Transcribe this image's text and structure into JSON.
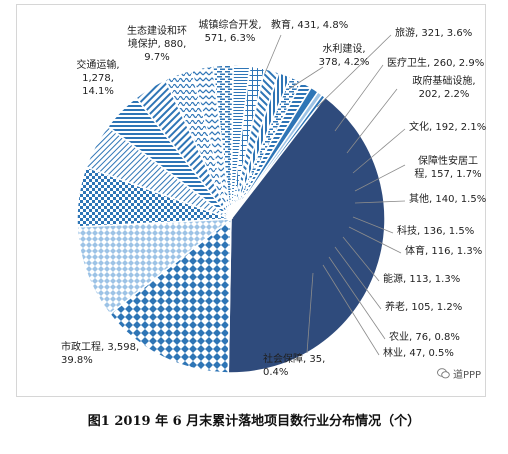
{
  "caption": "图1   2019 年 6 月末累计落地项目数行业分布情况（个）",
  "watermark": {
    "text": "道PPP",
    "icon": "wechat-icon"
  },
  "colors": {
    "dark_navy": "#2f4b7c",
    "blue": "#2e75b6",
    "light_blue": "#9dc3e6",
    "white": "#ffffff",
    "line": "#8c8c8c"
  },
  "chart_data": {
    "type": "pie",
    "title": "",
    "unit": "个",
    "slices": [
      {
        "key": "urban",
        "name": "城镇综合开发",
        "value": 571,
        "percent": 6.3,
        "label": "城镇综合开发,\n571, 6.3%"
      },
      {
        "key": "education",
        "name": "教育",
        "value": 431,
        "percent": 4.8,
        "label": "教育, 431, 4.8%"
      },
      {
        "key": "water",
        "name": "水利建设",
        "value": 378,
        "percent": 4.2,
        "label": "水利建设,\n378, 4.2%"
      },
      {
        "key": "tourism",
        "name": "旅游",
        "value": 321,
        "percent": 3.6,
        "label": "旅游, 321, 3.6%"
      },
      {
        "key": "health",
        "name": "医疗卫生",
        "value": 260,
        "percent": 2.9,
        "label": "医疗卫生, 260, 2.9%"
      },
      {
        "key": "gov",
        "name": "政府基础设施",
        "value": 202,
        "percent": 2.2,
        "label": "政府基础设施,\n202, 2.2%"
      },
      {
        "key": "culture",
        "name": "文化",
        "value": 192,
        "percent": 2.1,
        "label": "文化, 192, 2.1%"
      },
      {
        "key": "housing",
        "name": "保障性安居工程",
        "value": 157,
        "percent": 1.7,
        "label": "保障性安居工\n程, 157, 1.7%"
      },
      {
        "key": "other",
        "name": "其他",
        "value": 140,
        "percent": 1.5,
        "label": "其他, 140, 1.5%"
      },
      {
        "key": "tech",
        "name": "科技",
        "value": 136,
        "percent": 1.5,
        "label": "科技, 136, 1.5%"
      },
      {
        "key": "sports",
        "name": "体育",
        "value": 116,
        "percent": 1.3,
        "label": "体育, 116, 1.3%"
      },
      {
        "key": "energy",
        "name": "能源",
        "value": 113,
        "percent": 1.3,
        "label": "能源, 113, 1.3%"
      },
      {
        "key": "elderly",
        "name": "养老",
        "value": 105,
        "percent": 1.2,
        "label": "养老, 105, 1.2%"
      },
      {
        "key": "agri",
        "name": "农业",
        "value": 76,
        "percent": 0.8,
        "label": "农业, 76, 0.8%"
      },
      {
        "key": "forestry",
        "name": "林业",
        "value": 47,
        "percent": 0.5,
        "label": "林业, 47, 0.5%"
      },
      {
        "key": "social",
        "name": "社会保障",
        "value": 35,
        "percent": 0.4,
        "label": "社会保障, 35,\n0.4%"
      },
      {
        "key": "municipal",
        "name": "市政工程",
        "value": 3598,
        "percent": 39.8,
        "label": "市政工程, 3,598,\n39.8%"
      },
      {
        "key": "transport",
        "name": "交通运输",
        "value": 1278,
        "percent": 14.1,
        "label": "交通运输,\n1,278,\n14.1%"
      },
      {
        "key": "eco",
        "name": "生态建设和环境保护",
        "value": 880,
        "percent": 9.7,
        "label": "生态建设和环\n境保护, 880,\n9.7%"
      }
    ]
  }
}
